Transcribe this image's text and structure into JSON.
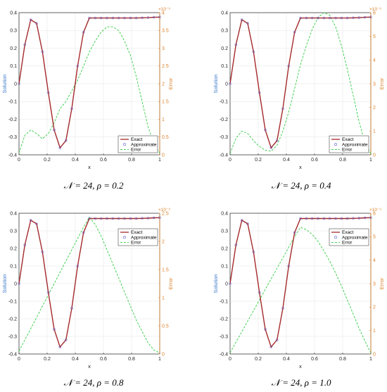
{
  "chart_data": [
    {
      "type": "line",
      "caption": "𝒩 = 24, ρ = 0.2",
      "xlabel": "x",
      "ylabel_left": "Solution",
      "ylabel_right": "Error",
      "xlim": [
        0,
        1
      ],
      "ylim_left": [
        -0.4,
        0.4
      ],
      "ylim_right": [
        0,
        4
      ],
      "right_axis_exponent": "×10⁻³",
      "x_ticks": [
        "0",
        "0.2",
        "0.4",
        "0.6",
        "0.8",
        "1"
      ],
      "y_ticks_left": [
        "-0.4",
        "-0.3",
        "-0.2",
        "-0.1",
        "0",
        "0.1",
        "0.2",
        "0.3",
        "0.4"
      ],
      "y_ticks_right": [
        "0",
        "0.5",
        "1",
        "1.5",
        "2",
        "2.5",
        "3",
        "3.5",
        "4"
      ],
      "legend": [
        "Exact",
        "Approximate",
        "Error"
      ],
      "legend_position": "lower-right",
      "grid": true,
      "x": [
        0,
        0.0417,
        0.0833,
        0.125,
        0.1667,
        0.2083,
        0.25,
        0.2917,
        0.3333,
        0.375,
        0.4167,
        0.4583,
        0.5,
        0.5417,
        0.5833,
        0.625,
        0.6667,
        0.7083,
        0.75,
        0.7917,
        0.8333,
        0.875,
        0.9167,
        0.9583,
        1
      ],
      "series": [
        {
          "name": "Exact",
          "color": "#a52a2a",
          "axis": "left",
          "values": [
            0,
            0.22,
            0.36,
            0.34,
            0.18,
            -0.05,
            -0.26,
            -0.36,
            -0.32,
            -0.14,
            0.1,
            0.29,
            0.37,
            0.37,
            0.37,
            0.37,
            0.37,
            0.37,
            0.37,
            0.37,
            0.37,
            0.371,
            0.372,
            0.374,
            0.375
          ]
        },
        {
          "name": "Approximate",
          "color": "#5a5ad0",
          "axis": "left",
          "values": [
            0,
            0.22,
            0.36,
            0.34,
            0.18,
            -0.05,
            -0.26,
            -0.36,
            -0.32,
            -0.14,
            0.1,
            0.29,
            0.37,
            0.37,
            0.37,
            0.37,
            0.37,
            0.37,
            0.37,
            0.37,
            0.37,
            0.371,
            0.372,
            0.374,
            0.375
          ]
        },
        {
          "name": "Error",
          "color": "#2ecc40",
          "axis": "right",
          "values": [
            0.05,
            0.55,
            0.7,
            0.6,
            0.45,
            0.6,
            0.9,
            1.3,
            1.5,
            1.8,
            2.1,
            2.5,
            2.9,
            3.2,
            3.45,
            3.6,
            3.6,
            3.5,
            3.2,
            2.8,
            2.2,
            1.5,
            0.8,
            0.3,
            0.05
          ]
        }
      ]
    },
    {
      "type": "line",
      "caption": "𝒩 = 24, ρ = 0.4",
      "xlabel": "x",
      "ylabel_left": "Solution",
      "ylabel_right": "Error",
      "xlim": [
        0,
        1
      ],
      "ylim_left": [
        -0.4,
        0.4
      ],
      "ylim_right": [
        0,
        6
      ],
      "right_axis_exponent": "×10⁻³",
      "x_ticks": [
        "0",
        "0.2",
        "0.4",
        "0.6",
        "0.8",
        "1"
      ],
      "y_ticks_left": [
        "-0.4",
        "-0.3",
        "-0.2",
        "-0.1",
        "0",
        "0.1",
        "0.2",
        "0.3",
        "0.4"
      ],
      "y_ticks_right": [
        "0",
        "1",
        "2",
        "3",
        "4",
        "5",
        "6"
      ],
      "legend": [
        "Exact",
        "Approximate",
        "Error"
      ],
      "legend_position": "lower-right",
      "grid": true,
      "x": [
        0,
        0.0417,
        0.0833,
        0.125,
        0.1667,
        0.2083,
        0.25,
        0.2917,
        0.3333,
        0.375,
        0.4167,
        0.4583,
        0.5,
        0.5417,
        0.5833,
        0.625,
        0.6667,
        0.7083,
        0.75,
        0.7917,
        0.8333,
        0.875,
        0.9167,
        0.9583,
        1
      ],
      "series": [
        {
          "name": "Exact",
          "color": "#a52a2a",
          "axis": "left",
          "values": [
            0,
            0.22,
            0.36,
            0.34,
            0.18,
            -0.05,
            -0.26,
            -0.36,
            -0.32,
            -0.14,
            0.1,
            0.29,
            0.37,
            0.37,
            0.37,
            0.37,
            0.37,
            0.37,
            0.37,
            0.37,
            0.37,
            0.371,
            0.372,
            0.374,
            0.375
          ]
        },
        {
          "name": "Approximate",
          "color": "#5a5ad0",
          "axis": "left",
          "values": [
            0,
            0.22,
            0.36,
            0.34,
            0.18,
            -0.05,
            -0.26,
            -0.36,
            -0.32,
            -0.14,
            0.1,
            0.29,
            0.37,
            0.37,
            0.37,
            0.37,
            0.37,
            0.37,
            0.37,
            0.37,
            0.37,
            0.371,
            0.372,
            0.374,
            0.375
          ]
        },
        {
          "name": "Error",
          "color": "#2ecc40",
          "axis": "right",
          "values": [
            0.05,
            0.7,
            1.0,
            0.9,
            0.6,
            0.35,
            0.2,
            0.15,
            0.4,
            1.0,
            1.8,
            2.8,
            3.8,
            4.6,
            5.3,
            5.8,
            6.0,
            5.9,
            5.4,
            4.6,
            3.6,
            2.5,
            1.4,
            0.5,
            0.05
          ]
        }
      ]
    },
    {
      "type": "line",
      "caption": "𝒩 = 24, ρ = 0.8",
      "xlabel": "x",
      "ylabel_left": "Solution",
      "ylabel_right": "Error",
      "xlim": [
        0,
        1
      ],
      "ylim_left": [
        -0.4,
        0.4
      ],
      "ylim_right": [
        0,
        2.5
      ],
      "right_axis_exponent": "×10⁻³",
      "x_ticks": [
        "0",
        "0.2",
        "0.4",
        "0.6",
        "0.8",
        "1"
      ],
      "y_ticks_left": [
        "-0.4",
        "-0.3",
        "-0.2",
        "-0.1",
        "0",
        "0.1",
        "0.2",
        "0.3",
        "0.4"
      ],
      "y_ticks_right": [
        "0",
        "0.5",
        "1",
        "1.5",
        "2",
        "2.5"
      ],
      "legend": [
        "Exact",
        "Approximate",
        "Error"
      ],
      "legend_position": "top-right",
      "grid": true,
      "x": [
        0,
        0.0417,
        0.0833,
        0.125,
        0.1667,
        0.2083,
        0.25,
        0.2917,
        0.3333,
        0.375,
        0.4167,
        0.4583,
        0.5,
        0.5417,
        0.5833,
        0.625,
        0.6667,
        0.7083,
        0.75,
        0.7917,
        0.8333,
        0.875,
        0.9167,
        0.9583,
        1
      ],
      "series": [
        {
          "name": "Exact",
          "color": "#a52a2a",
          "axis": "left",
          "values": [
            0,
            0.22,
            0.36,
            0.34,
            0.18,
            -0.05,
            -0.26,
            -0.36,
            -0.32,
            -0.14,
            0.1,
            0.29,
            0.37,
            0.37,
            0.37,
            0.37,
            0.37,
            0.37,
            0.37,
            0.37,
            0.37,
            0.371,
            0.372,
            0.374,
            0.375
          ]
        },
        {
          "name": "Approximate",
          "color": "#5a5ad0",
          "axis": "left",
          "values": [
            0,
            0.22,
            0.36,
            0.34,
            0.18,
            -0.05,
            -0.26,
            -0.36,
            -0.32,
            -0.14,
            0.1,
            0.29,
            0.37,
            0.37,
            0.37,
            0.37,
            0.37,
            0.37,
            0.37,
            0.37,
            0.37,
            0.371,
            0.372,
            0.374,
            0.375
          ]
        },
        {
          "name": "Error",
          "color": "#2ecc40",
          "axis": "right",
          "values": [
            0.05,
            0.25,
            0.45,
            0.65,
            0.85,
            1.05,
            1.25,
            1.45,
            1.65,
            1.85,
            2.05,
            2.25,
            2.43,
            2.3,
            2.1,
            1.85,
            1.6,
            1.35,
            1.1,
            0.85,
            0.6,
            0.4,
            0.2,
            0.07,
            0.02
          ]
        }
      ]
    },
    {
      "type": "line",
      "caption": "𝒩 = 24, ρ = 1.0",
      "xlabel": "x",
      "ylabel_left": "Solution",
      "ylabel_right": "Error",
      "xlim": [
        0,
        1
      ],
      "ylim_left": [
        -0.4,
        0.4
      ],
      "ylim_right": [
        0,
        6
      ],
      "right_axis_exponent": "×10⁻³",
      "x_ticks": [
        "0",
        "0.2",
        "0.4",
        "0.6",
        "0.8",
        "1"
      ],
      "y_ticks_left": [
        "-0.4",
        "-0.3",
        "-0.2",
        "-0.1",
        "0",
        "0.1",
        "0.2",
        "0.3",
        "0.4"
      ],
      "y_ticks_right": [
        "0",
        "1",
        "2",
        "3",
        "4",
        "5",
        "6"
      ],
      "legend": [
        "Exact",
        "Approximate",
        "Error"
      ],
      "legend_position": "top-right",
      "grid": true,
      "x": [
        0,
        0.0417,
        0.0833,
        0.125,
        0.1667,
        0.2083,
        0.25,
        0.2917,
        0.3333,
        0.375,
        0.4167,
        0.4583,
        0.5,
        0.5417,
        0.5833,
        0.625,
        0.6667,
        0.7083,
        0.75,
        0.7917,
        0.8333,
        0.875,
        0.9167,
        0.9583,
        1
      ],
      "series": [
        {
          "name": "Exact",
          "color": "#a52a2a",
          "axis": "left",
          "values": [
            0,
            0.22,
            0.36,
            0.34,
            0.18,
            -0.05,
            -0.26,
            -0.36,
            -0.32,
            -0.14,
            0.1,
            0.29,
            0.37,
            0.37,
            0.37,
            0.37,
            0.37,
            0.37,
            0.37,
            0.37,
            0.37,
            0.371,
            0.372,
            0.374,
            0.375
          ]
        },
        {
          "name": "Approximate",
          "color": "#5a5ad0",
          "axis": "left",
          "values": [
            0,
            0.22,
            0.36,
            0.34,
            0.18,
            -0.05,
            -0.26,
            -0.36,
            -0.32,
            -0.14,
            0.1,
            0.29,
            0.37,
            0.37,
            0.37,
            0.37,
            0.37,
            0.37,
            0.37,
            0.37,
            0.37,
            0.371,
            0.372,
            0.374,
            0.375
          ]
        },
        {
          "name": "Error",
          "color": "#2ecc40",
          "axis": "right",
          "values": [
            0.05,
            0.5,
            0.95,
            1.4,
            1.85,
            2.3,
            2.75,
            3.2,
            3.65,
            4.1,
            4.55,
            5.0,
            5.4,
            5.3,
            5.1,
            4.8,
            4.4,
            3.95,
            3.45,
            2.9,
            2.3,
            1.7,
            1.1,
            0.55,
            0.05
          ]
        }
      ]
    }
  ]
}
